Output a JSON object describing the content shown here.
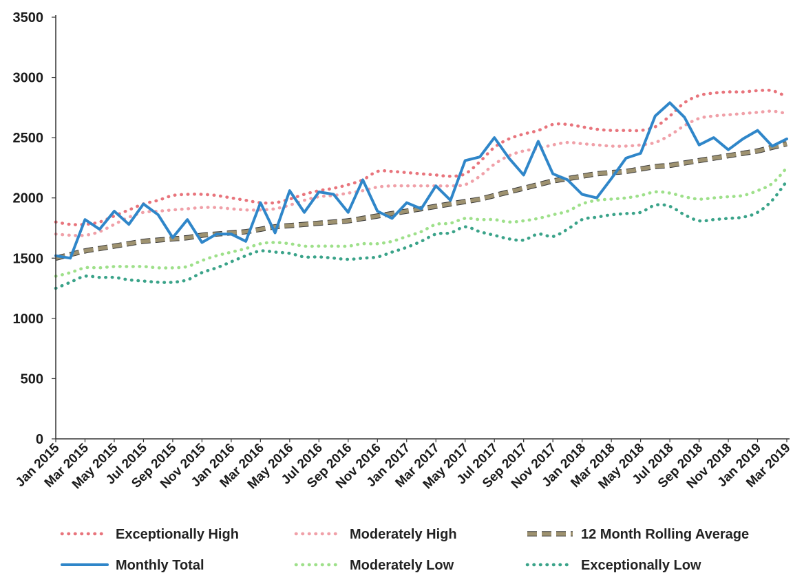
{
  "chart_data": {
    "type": "line",
    "title": "",
    "xlabel": "",
    "ylabel": "",
    "ylim": [
      0,
      3500
    ],
    "yticks": [
      0,
      500,
      1000,
      1500,
      2000,
      2500,
      3000,
      3500
    ],
    "x": [
      "Jan 2015",
      "Feb 2015",
      "Mar 2015",
      "Apr 2015",
      "May 2015",
      "Jun 2015",
      "Jul 2015",
      "Aug 2015",
      "Sep 2015",
      "Oct 2015",
      "Nov 2015",
      "Dec 2015",
      "Jan 2016",
      "Feb 2016",
      "Mar 2016",
      "Apr 2016",
      "May 2016",
      "Jun 2016",
      "Jul 2016",
      "Aug 2016",
      "Sep 2016",
      "Oct 2016",
      "Nov 2016",
      "Dec 2016",
      "Jan 2017",
      "Feb 2017",
      "Mar 2017",
      "Apr 2017",
      "May 2017",
      "Jun 2017",
      "Jul 2017",
      "Aug 2017",
      "Sep 2017",
      "Oct 2017",
      "Nov 2017",
      "Dec 2017",
      "Jan 2018",
      "Feb 2018",
      "Mar 2018",
      "Apr 2018",
      "May 2018",
      "Jun 2018",
      "Jul 2018",
      "Aug 2018",
      "Sep 2018",
      "Oct 2018",
      "Nov 2018",
      "Dec 2018",
      "Jan 2019",
      "Feb 2019",
      "Mar 2019"
    ],
    "xtick_labels": [
      "Jan 2015",
      "Mar 2015",
      "May 2015",
      "Jul 2015",
      "Sep 2015",
      "Nov 2015",
      "Jan 2016",
      "Mar 2016",
      "May 2016",
      "Jul 2016",
      "Sep 2016",
      "Nov 2016",
      "Jan 2017",
      "Mar 2017",
      "May 2017",
      "Jul 2017",
      "Sep 2017",
      "Nov 2017",
      "Jan 2018",
      "Mar 2018",
      "May 2018",
      "Jul 2018",
      "Sep 2018",
      "Nov 2018",
      "Jan 2019",
      "Mar 2019"
    ],
    "legend_position": "bottom",
    "series": [
      {
        "name": "Exceptionally High",
        "style": "dotted",
        "color": "#e8747c",
        "values": [
          1800,
          1780,
          1780,
          1800,
          1850,
          1900,
          1950,
          1980,
          2020,
          2030,
          2030,
          2020,
          2000,
          1980,
          1960,
          1960,
          1990,
          2030,
          2060,
          2080,
          2110,
          2150,
          2220,
          2220,
          2210,
          2200,
          2190,
          2180,
          2200,
          2300,
          2420,
          2490,
          2530,
          2560,
          2610,
          2610,
          2590,
          2570,
          2560,
          2560,
          2560,
          2590,
          2680,
          2790,
          2850,
          2870,
          2880,
          2880,
          2890,
          2890,
          2840
        ]
      },
      {
        "name": "Moderately High",
        "style": "dotted",
        "color": "#f0a0a8",
        "values": [
          1700,
          1690,
          1690,
          1720,
          1780,
          1840,
          1880,
          1890,
          1900,
          1910,
          1920,
          1920,
          1910,
          1900,
          1900,
          1910,
          1940,
          1980,
          2010,
          2020,
          2040,
          2060,
          2090,
          2100,
          2100,
          2100,
          2100,
          2100,
          2110,
          2180,
          2280,
          2350,
          2390,
          2410,
          2440,
          2460,
          2450,
          2440,
          2430,
          2430,
          2440,
          2460,
          2520,
          2600,
          2660,
          2680,
          2690,
          2700,
          2710,
          2720,
          2700
        ]
      },
      {
        "name": "12 Month Rolling Average",
        "style": "dashed",
        "color": "#9e9270",
        "values": [
          1500,
          1530,
          1560,
          1580,
          1600,
          1620,
          1640,
          1650,
          1660,
          1670,
          1690,
          1700,
          1710,
          1720,
          1740,
          1760,
          1770,
          1780,
          1790,
          1800,
          1810,
          1830,
          1850,
          1870,
          1890,
          1910,
          1930,
          1950,
          1970,
          1990,
          2020,
          2050,
          2080,
          2110,
          2140,
          2160,
          2180,
          2200,
          2210,
          2220,
          2240,
          2260,
          2270,
          2290,
          2310,
          2330,
          2350,
          2370,
          2390,
          2420,
          2450
        ]
      },
      {
        "name": "Monthly Total",
        "style": "solid",
        "color": "#2f86c9",
        "values": [
          1520,
          1500,
          1820,
          1740,
          1890,
          1780,
          1950,
          1860,
          1670,
          1820,
          1630,
          1700,
          1700,
          1640,
          1960,
          1710,
          2060,
          1880,
          2050,
          2030,
          1880,
          2150,
          1890,
          1830,
          1960,
          1910,
          2100,
          1980,
          2310,
          2340,
          2500,
          2330,
          2190,
          2470,
          2200,
          2150,
          2030,
          2000,
          2160,
          2330,
          2370,
          2680,
          2790,
          2670,
          2440,
          2500,
          2400,
          2490,
          2560,
          2430,
          2490
        ]
      },
      {
        "name": "Moderately Low",
        "style": "dotted",
        "color": "#9ee08a",
        "values": [
          1350,
          1380,
          1420,
          1420,
          1430,
          1430,
          1430,
          1420,
          1420,
          1430,
          1480,
          1520,
          1550,
          1580,
          1620,
          1630,
          1620,
          1600,
          1600,
          1600,
          1600,
          1620,
          1620,
          1640,
          1680,
          1720,
          1780,
          1790,
          1830,
          1820,
          1820,
          1800,
          1810,
          1830,
          1860,
          1890,
          1950,
          1980,
          1990,
          2000,
          2020,
          2050,
          2040,
          2010,
          1990,
          2000,
          2010,
          2020,
          2060,
          2120,
          2250
        ]
      },
      {
        "name": "Exceptionally Low",
        "style": "dotted",
        "color": "#3aa389",
        "values": [
          1250,
          1300,
          1350,
          1340,
          1340,
          1320,
          1310,
          1300,
          1300,
          1320,
          1380,
          1420,
          1470,
          1520,
          1560,
          1550,
          1540,
          1510,
          1510,
          1500,
          1490,
          1500,
          1510,
          1550,
          1590,
          1640,
          1700,
          1710,
          1760,
          1720,
          1690,
          1660,
          1650,
          1700,
          1680,
          1740,
          1820,
          1840,
          1860,
          1870,
          1880,
          1940,
          1930,
          1860,
          1810,
          1820,
          1830,
          1840,
          1880,
          1980,
          2140
        ]
      }
    ]
  }
}
